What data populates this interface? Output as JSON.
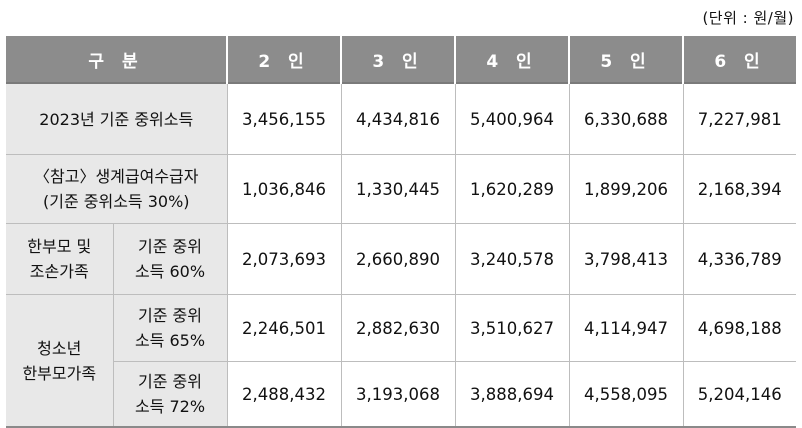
{
  "unit_note": "(단위 : 원/월)",
  "headers": {
    "category": "구 분",
    "cols": [
      "2 인",
      "3 인",
      "4 인",
      "5 인",
      "6 인"
    ]
  },
  "rows": [
    {
      "label_lines": [
        "2023년 기준 중위소득"
      ],
      "values": [
        "3,456,155",
        "4,434,816",
        "5,400,964",
        "6,330,688",
        "7,227,981"
      ]
    },
    {
      "label_lines": [
        "〈참고〉생계급여수급자",
        "(기준 중위소득 30%)"
      ],
      "values": [
        "1,036,846",
        "1,330,445",
        "1,620,289",
        "1,899,206",
        "2,168,394"
      ]
    },
    {
      "group_lines": [
        "한부모 및",
        "조손가족"
      ],
      "sub_lines": [
        "기준 중위",
        "소득 60%"
      ],
      "values": [
        "2,073,693",
        "2,660,890",
        "3,240,578",
        "3,798,413",
        "4,336,789"
      ]
    },
    {
      "group_lines": [
        "청소년",
        "한부모가족"
      ],
      "sub_lines": [
        "기준 중위",
        "소득 65%"
      ],
      "values": [
        "2,246,501",
        "2,882,630",
        "3,510,627",
        "4,114,947",
        "4,698,188"
      ]
    },
    {
      "sub_lines": [
        "기준 중위",
        "소득 72%"
      ],
      "values": [
        "2,488,432",
        "3,193,068",
        "3,888,694",
        "4,558,095",
        "5,204,146"
      ]
    }
  ]
}
